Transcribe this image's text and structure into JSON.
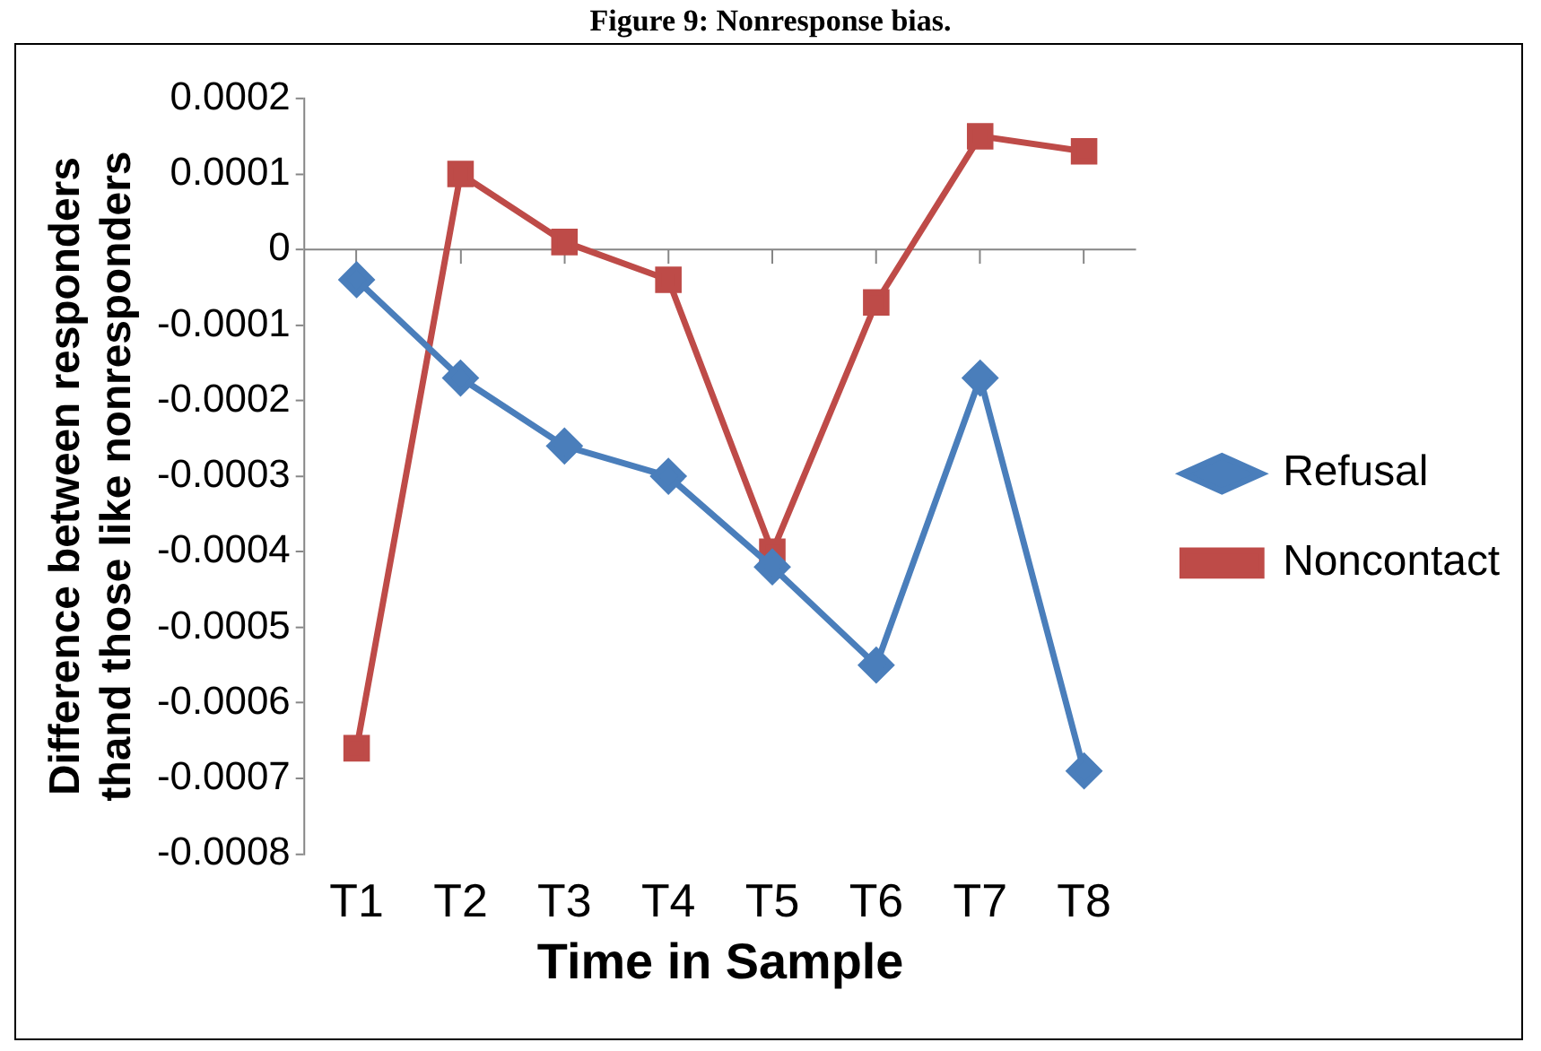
{
  "chart_data": {
    "type": "line",
    "title": "Figure 9: Nonresponse bias.",
    "xlabel": "Time in Sample",
    "ylabel": "Difference between responders\nthand those like nonresponders",
    "categories": [
      "T1",
      "T2",
      "T3",
      "T4",
      "T5",
      "T6",
      "T7",
      "T8"
    ],
    "series": [
      {
        "name": "Refusal",
        "color": "#4a7ebb",
        "marker": "diamond",
        "values": [
          -4e-05,
          -0.00017,
          -0.00026,
          -0.0003,
          -0.00042,
          -0.00055,
          -0.00017,
          -0.00069
        ]
      },
      {
        "name": "Noncontact",
        "color": "#be4b48",
        "marker": "square",
        "values": [
          -0.00066,
          0.0001,
          1e-05,
          -4e-05,
          -0.0004,
          -7e-05,
          0.00015,
          0.00013
        ]
      }
    ],
    "ylim": [
      -0.0008,
      0.0002
    ],
    "yticks": [
      -0.0008,
      -0.0007,
      -0.0006,
      -0.0005,
      -0.0004,
      -0.0003,
      -0.0002,
      -0.0001,
      0,
      0.0001,
      0.0002
    ],
    "ref_lines": [
      {
        "axis": "y",
        "value": 0,
        "color": "#868686"
      }
    ],
    "grid": false,
    "legend": "right",
    "line_style": "solid"
  }
}
